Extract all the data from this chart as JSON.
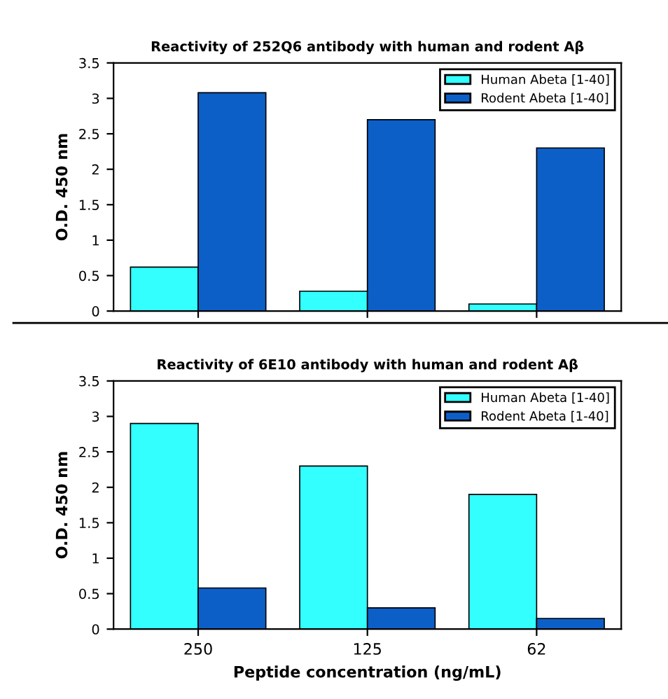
{
  "chart_data": [
    {
      "type": "bar",
      "title": "Reactivity of 252Q6 antibody with human and rodent Aβ",
      "ylabel": "O.D. 450 nm",
      "categories": [
        "250",
        "125",
        "62"
      ],
      "series": [
        {
          "name": "Human Abeta [1-40]",
          "color": "#33ffff",
          "values": [
            0.62,
            0.28,
            0.1
          ]
        },
        {
          "name": "Rodent Abeta [1-40]",
          "color": "#0d5fc8",
          "values": [
            3.08,
            2.7,
            2.3
          ]
        }
      ],
      "ylim": [
        0,
        3.5
      ],
      "yticks": [
        0,
        0.5,
        1,
        1.5,
        2,
        2.5,
        3,
        3.5
      ],
      "legend": "top right",
      "tick_labels": "y"
    },
    {
      "type": "bar",
      "title": "Reactivity of 6E10 antibody with human and rodent Aβ",
      "ylabel": "O.D. 450 nm",
      "xlabel": "Peptide concentration (ng/mL)",
      "categories": [
        "250",
        "125",
        "62"
      ],
      "series": [
        {
          "name": "Human Abeta [1-40]",
          "color": "#33ffff",
          "values": [
            2.9,
            2.3,
            1.9
          ]
        },
        {
          "name": "Rodent Abeta [1-40]",
          "color": "#0d5fc8",
          "values": [
            0.58,
            0.3,
            0.15
          ]
        }
      ],
      "ylim": [
        0,
        3.5
      ],
      "yticks": [
        0,
        0.5,
        1,
        1.5,
        2,
        2.5,
        3,
        3.5
      ],
      "legend": "top right"
    }
  ]
}
